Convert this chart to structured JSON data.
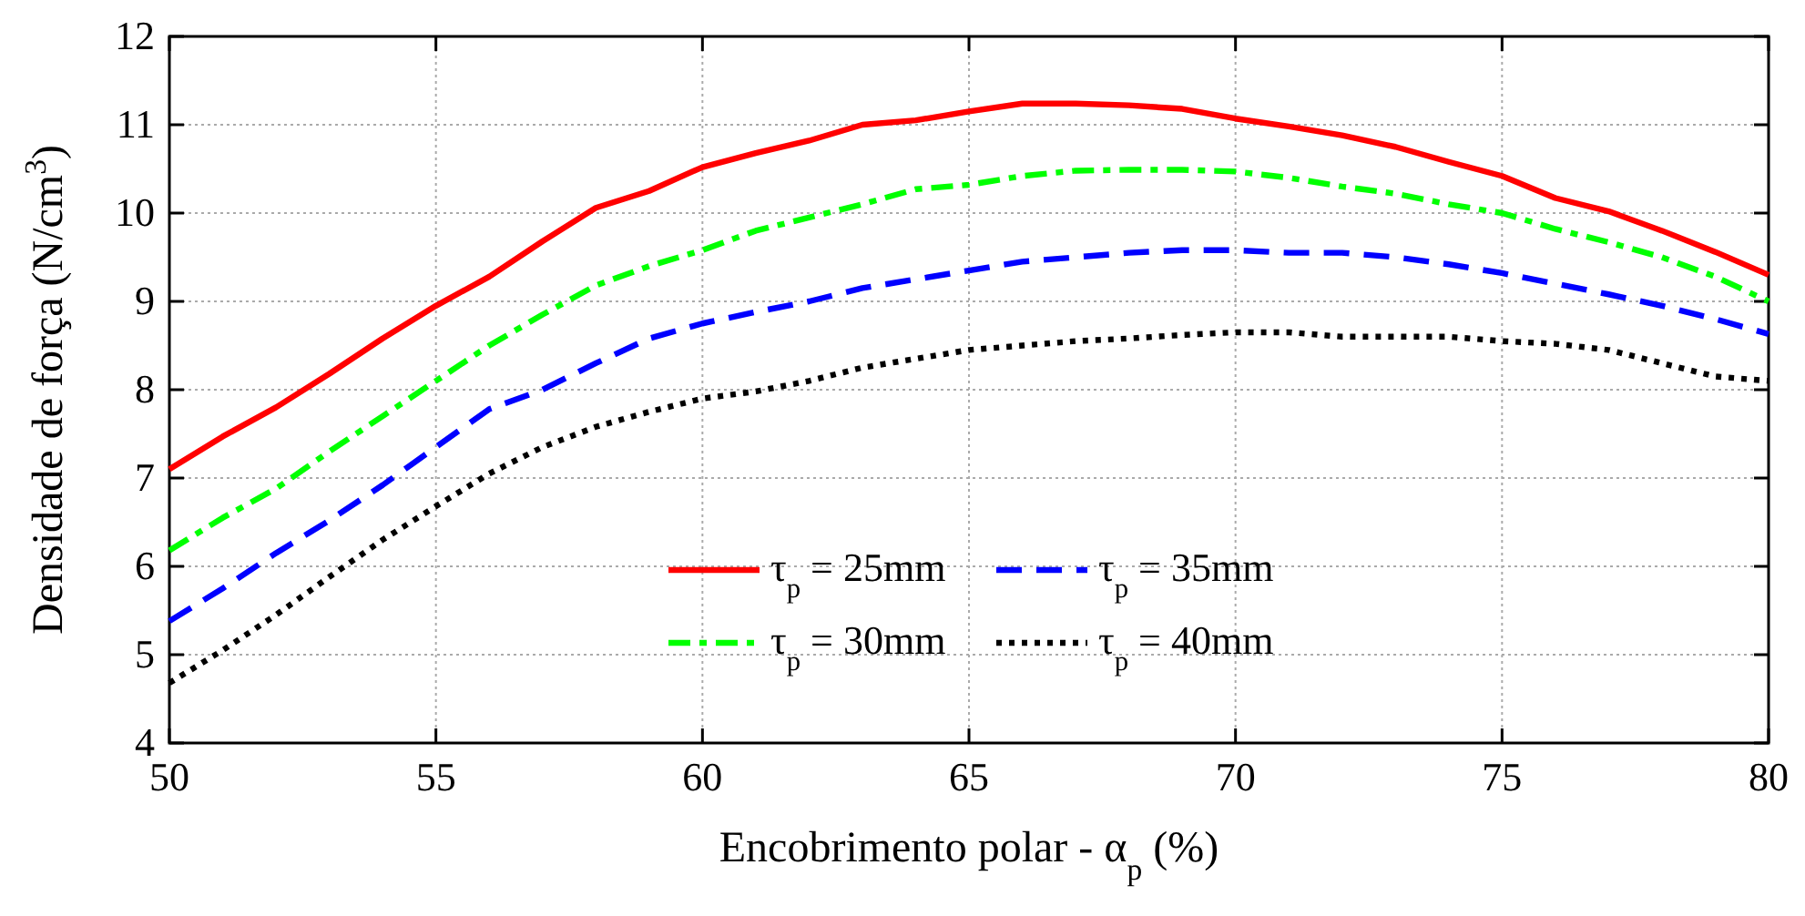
{
  "chart_data": {
    "type": "line",
    "xlabel": "Encobrimento polar - α$_{p}$ (%)",
    "ylabel": "Densidade de força (N/cm$^{3}$)",
    "x": [
      50,
      51,
      52,
      53,
      54,
      55,
      56,
      57,
      58,
      59,
      60,
      61,
      62,
      63,
      64,
      65,
      66,
      67,
      68,
      69,
      70,
      71,
      72,
      73,
      74,
      75,
      76,
      77,
      78,
      79,
      80
    ],
    "series": [
      {
        "name": "τ$_{p}$ = 25mm",
        "color": "#ff0000",
        "line_style": "solid",
        "values": [
          7.1,
          7.47,
          7.8,
          8.18,
          8.58,
          8.95,
          9.28,
          9.68,
          10.06,
          10.25,
          10.52,
          10.68,
          10.82,
          11.0,
          11.05,
          11.15,
          11.24,
          11.24,
          11.22,
          11.18,
          11.07,
          10.98,
          10.88,
          10.75,
          10.58,
          10.42,
          10.17,
          10.02,
          9.8,
          9.56,
          9.3
        ]
      },
      {
        "name": "τ$_{p}$ = 30mm",
        "color": "#00ff00",
        "line_style": "dashdot",
        "values": [
          6.18,
          6.55,
          6.88,
          7.3,
          7.7,
          8.1,
          8.5,
          8.85,
          9.18,
          9.4,
          9.58,
          9.8,
          9.95,
          10.1,
          10.27,
          10.32,
          10.42,
          10.48,
          10.49,
          10.49,
          10.47,
          10.4,
          10.3,
          10.22,
          10.1,
          10.0,
          9.82,
          9.67,
          9.5,
          9.28,
          9.0
        ]
      },
      {
        "name": "τ$_{p}$ = 35mm",
        "color": "#0000ff",
        "line_style": "dashed",
        "values": [
          5.38,
          5.75,
          6.15,
          6.52,
          6.92,
          7.35,
          7.78,
          8.0,
          8.3,
          8.58,
          8.75,
          8.88,
          9.0,
          9.15,
          9.25,
          9.35,
          9.45,
          9.5,
          9.55,
          9.58,
          9.58,
          9.55,
          9.55,
          9.5,
          9.42,
          9.32,
          9.2,
          9.08,
          8.95,
          8.8,
          8.63
        ]
      },
      {
        "name": "τ$_{p}$ = 40mm",
        "color": "#000000",
        "line_style": "dotted",
        "values": [
          4.68,
          5.05,
          5.45,
          5.88,
          6.3,
          6.68,
          7.05,
          7.35,
          7.58,
          7.75,
          7.9,
          7.98,
          8.1,
          8.25,
          8.35,
          8.45,
          8.5,
          8.55,
          8.58,
          8.62,
          8.65,
          8.65,
          8.6,
          8.6,
          8.6,
          8.55,
          8.52,
          8.45,
          8.3,
          8.15,
          8.1
        ]
      }
    ],
    "xlim": [
      50,
      80
    ],
    "xticks": [
      50,
      55,
      60,
      65,
      70,
      75,
      80
    ],
    "ylim": [
      4,
      12
    ],
    "yticks": [
      4,
      5,
      6,
      7,
      8,
      9,
      10,
      11,
      12
    ],
    "grid": true,
    "legend": "bottom"
  }
}
